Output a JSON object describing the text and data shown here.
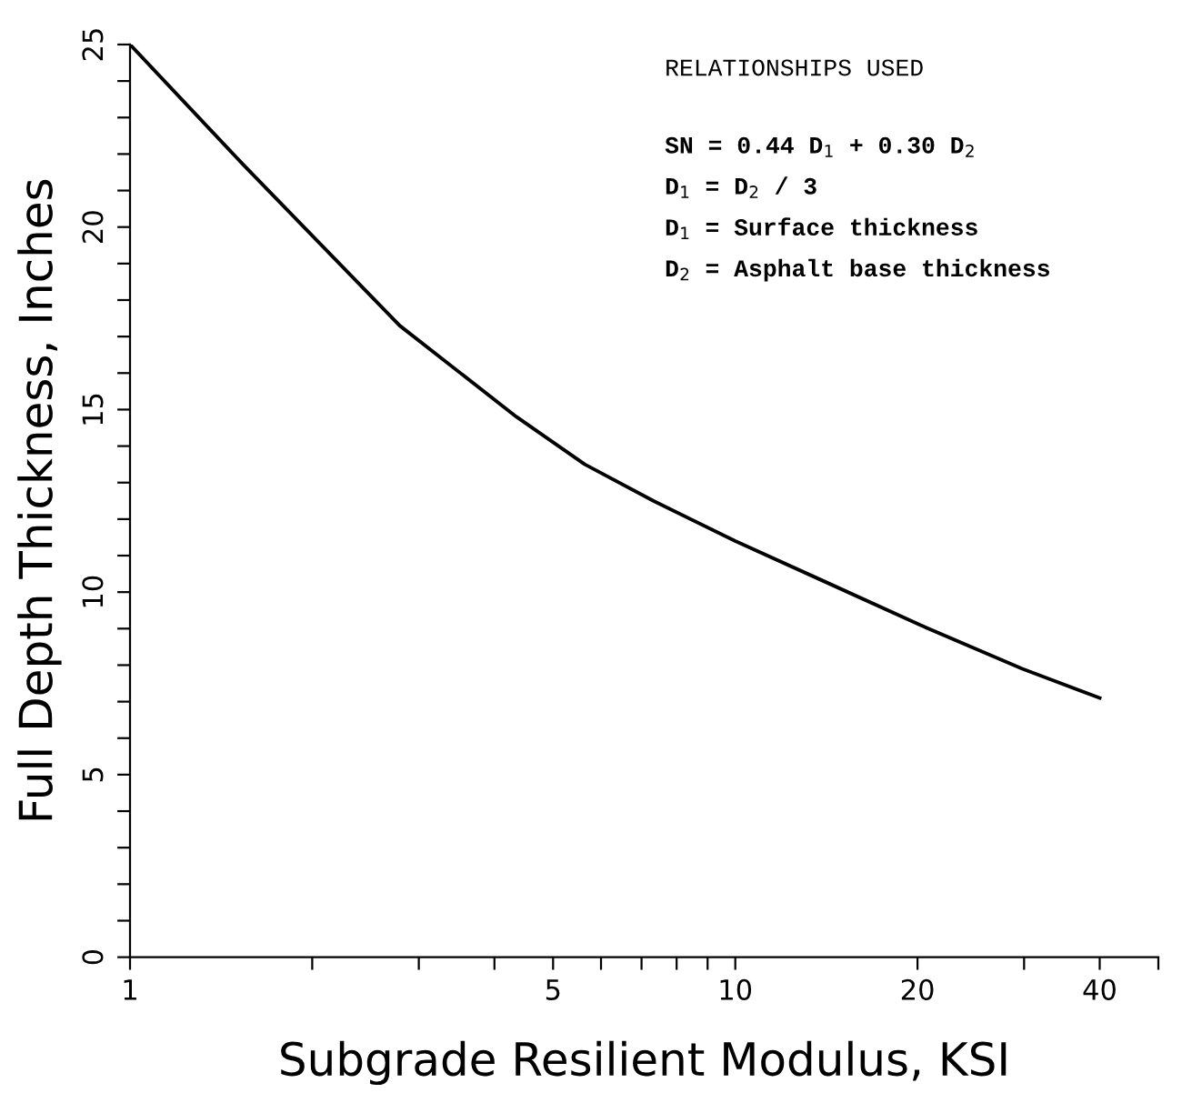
{
  "chart_data": {
    "type": "line",
    "xlabel": "Subgrade Resilient Modulus, KSI",
    "ylabel": "Full Depth Thickness, Inches",
    "x": [
      1,
      1.54,
      2.79,
      4.35,
      5.64,
      7.32,
      10,
      14,
      20.2,
      29.8,
      40
    ],
    "series": [
      {
        "color": "#000000",
        "values": [
          25,
          21.7,
          17.3,
          14.8,
          13.5,
          12.5,
          11.4,
          10.3,
          9.1,
          7.9,
          7.1
        ]
      }
    ],
    "log": "x",
    "xlim": [
      1,
      50
    ],
    "ylim": [
      0,
      25
    ],
    "xticks": [
      1,
      {
        "value": 2,
        "label": null
      },
      {
        "value": 3,
        "label": null
      },
      {
        "value": 4,
        "label": null
      },
      5,
      {
        "value": 6,
        "label": null
      },
      {
        "value": 7,
        "label": null
      },
      {
        "value": 8,
        "label": null
      },
      {
        "value": 9,
        "label": null
      },
      10,
      20,
      {
        "value": 30,
        "label": null
      },
      40,
      {
        "value": 50,
        "label": null
      }
    ],
    "yticks": [
      0,
      {
        "value": 1,
        "label": null
      },
      {
        "value": 2,
        "label": null
      },
      {
        "value": 3,
        "label": null
      },
      {
        "value": 4,
        "label": null
      },
      5,
      {
        "value": 6,
        "label": null
      },
      {
        "value": 7,
        "label": null
      },
      {
        "value": 8,
        "label": null
      },
      {
        "value": 9,
        "label": null
      },
      10,
      {
        "value": 11,
        "label": null
      },
      {
        "value": 12,
        "label": null
      },
      {
        "value": 13,
        "label": null
      },
      {
        "value": 14,
        "label": null
      },
      15,
      {
        "value": 16,
        "label": null
      },
      {
        "value": 17,
        "label": null
      },
      {
        "value": 18,
        "label": null
      },
      {
        "value": 19,
        "label": null
      },
      20,
      {
        "value": 21,
        "label": null
      },
      {
        "value": 22,
        "label": null
      },
      {
        "value": 23,
        "label": null
      },
      {
        "value": 24,
        "label": null
      },
      25
    ],
    "marker": "none",
    "line_style": "solid",
    "annotations": [
      "RELATIONSHIPS USED",
      "SN = 0.44 D$_{1}$ + 0.30 D$_{2}$",
      "D$_{1}$ = D$_{2}$ / 3",
      "D$_{1}$ = Surface thickness",
      "D$_{2}$ = Asphalt base thickness"
    ]
  }
}
